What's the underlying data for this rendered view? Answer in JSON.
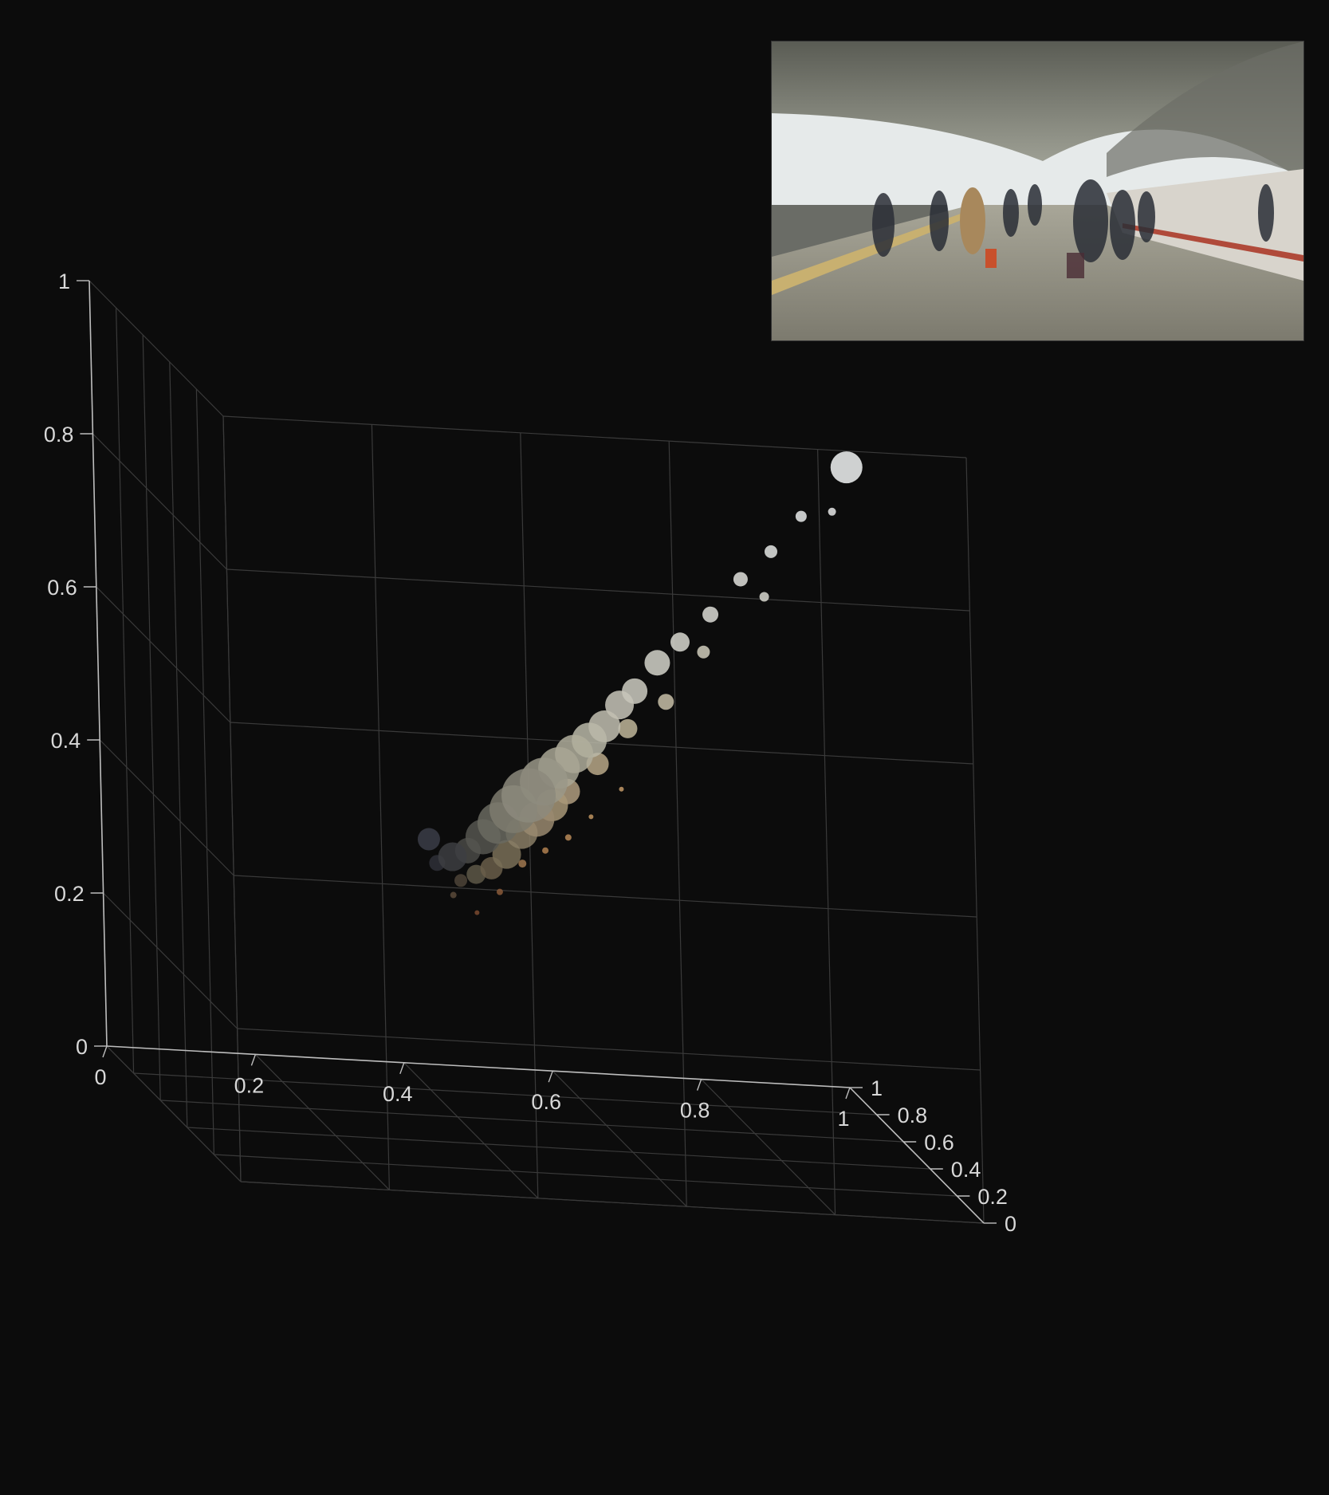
{
  "chart_data": {
    "type": "scatter",
    "projection": "3d",
    "title": "",
    "xlabel": "",
    "ylabel": "",
    "zlabel": "",
    "xlim": [
      0,
      1
    ],
    "ylim": [
      0,
      1
    ],
    "zlim": [
      0,
      1
    ],
    "grid": true,
    "x_ticks": [
      "0",
      "0.2",
      "0.4",
      "0.6",
      "0.8",
      "1"
    ],
    "y_ticks": [
      "0",
      "0.2",
      "0.4",
      "0.6",
      "0.8",
      "1"
    ],
    "z_ticks": [
      "0",
      "0.2",
      "0.4",
      "0.6",
      "0.8",
      "1"
    ],
    "point_size_meaning": "pixel frequency",
    "points": [
      {
        "x": 0.35,
        "z": 0.38,
        "s": 14,
        "c": "#3b3d48"
      },
      {
        "x": 0.36,
        "z": 0.35,
        "s": 10,
        "c": "#2f3038"
      },
      {
        "x": 0.38,
        "z": 0.36,
        "s": 18,
        "c": "#3d3e42"
      },
      {
        "x": 0.39,
        "z": 0.33,
        "s": 8,
        "c": "#4e4438"
      },
      {
        "x": 0.4,
        "z": 0.37,
        "s": 16,
        "c": "#4a4a46"
      },
      {
        "x": 0.41,
        "z": 0.34,
        "s": 12,
        "c": "#5e5848"
      },
      {
        "x": 0.42,
        "z": 0.39,
        "s": 22,
        "c": "#565650"
      },
      {
        "x": 0.43,
        "z": 0.35,
        "s": 14,
        "c": "#6a5e4a"
      },
      {
        "x": 0.44,
        "z": 0.41,
        "s": 26,
        "c": "#6a6a60"
      },
      {
        "x": 0.45,
        "z": 0.37,
        "s": 18,
        "c": "#7a7058"
      },
      {
        "x": 0.46,
        "z": 0.43,
        "s": 30,
        "c": "#7e7b6e"
      },
      {
        "x": 0.47,
        "z": 0.4,
        "s": 20,
        "c": "#8a7e66"
      },
      {
        "x": 0.48,
        "z": 0.45,
        "s": 34,
        "c": "#8c8a7c"
      },
      {
        "x": 0.49,
        "z": 0.42,
        "s": 22,
        "c": "#9a8a70"
      },
      {
        "x": 0.5,
        "z": 0.47,
        "s": 30,
        "c": "#9a9888"
      },
      {
        "x": 0.51,
        "z": 0.44,
        "s": 20,
        "c": "#a89878"
      },
      {
        "x": 0.52,
        "z": 0.49,
        "s": 26,
        "c": "#a8a694"
      },
      {
        "x": 0.54,
        "z": 0.51,
        "s": 24,
        "c": "#b0ae9c"
      },
      {
        "x": 0.53,
        "z": 0.46,
        "s": 16,
        "c": "#b09e80"
      },
      {
        "x": 0.56,
        "z": 0.53,
        "s": 22,
        "c": "#bab8a8"
      },
      {
        "x": 0.58,
        "z": 0.55,
        "s": 20,
        "c": "#c2c0b2"
      },
      {
        "x": 0.57,
        "z": 0.5,
        "s": 14,
        "c": "#b8a888"
      },
      {
        "x": 0.6,
        "z": 0.58,
        "s": 18,
        "c": "#c8c6ba"
      },
      {
        "x": 0.62,
        "z": 0.6,
        "s": 16,
        "c": "#cecdc2"
      },
      {
        "x": 0.61,
        "z": 0.55,
        "s": 12,
        "c": "#c0b69a"
      },
      {
        "x": 0.65,
        "z": 0.64,
        "s": 16,
        "c": "#d4d3ca"
      },
      {
        "x": 0.66,
        "z": 0.59,
        "s": 10,
        "c": "#c8c0a8"
      },
      {
        "x": 0.68,
        "z": 0.67,
        "s": 12,
        "c": "#d8d8d0"
      },
      {
        "x": 0.72,
        "z": 0.71,
        "s": 10,
        "c": "#dcdcd6"
      },
      {
        "x": 0.71,
        "z": 0.66,
        "s": 8,
        "c": "#d0ccbc"
      },
      {
        "x": 0.76,
        "z": 0.76,
        "s": 9,
        "c": "#e0e0dc"
      },
      {
        "x": 0.8,
        "z": 0.8,
        "s": 8,
        "c": "#e4e6e4"
      },
      {
        "x": 0.79,
        "z": 0.74,
        "s": 6,
        "c": "#d8d8d0"
      },
      {
        "x": 0.84,
        "z": 0.85,
        "s": 7,
        "c": "#e8eaea"
      },
      {
        "x": 0.9,
        "z": 0.92,
        "s": 20,
        "c": "#f2f4f4"
      },
      {
        "x": 0.88,
        "z": 0.86,
        "s": 5,
        "c": "#e6e8e8"
      },
      {
        "x": 0.47,
        "z": 0.36,
        "s": 5,
        "c": "#a07850"
      },
      {
        "x": 0.5,
        "z": 0.38,
        "s": 4,
        "c": "#b08050"
      },
      {
        "x": 0.53,
        "z": 0.4,
        "s": 4,
        "c": "#b88a58"
      },
      {
        "x": 0.44,
        "z": 0.32,
        "s": 4,
        "c": "#8a5a3a"
      },
      {
        "x": 0.41,
        "z": 0.29,
        "s": 3,
        "c": "#7a4a30"
      },
      {
        "x": 0.56,
        "z": 0.43,
        "s": 3,
        "c": "#c09460"
      },
      {
        "x": 0.6,
        "z": 0.47,
        "s": 3,
        "c": "#c49a68"
      },
      {
        "x": 0.38,
        "z": 0.31,
        "s": 4,
        "c": "#5a4a3a"
      }
    ]
  },
  "photo": {
    "description_icon": "photo-thumbnail",
    "palette": {
      "roof": "#9a9a8c",
      "sky": "#e8ecec",
      "floor": "#8c8a7c",
      "train": "#d8d4cc",
      "people": "#2a2e36",
      "suitcase": "#c8502c"
    }
  }
}
